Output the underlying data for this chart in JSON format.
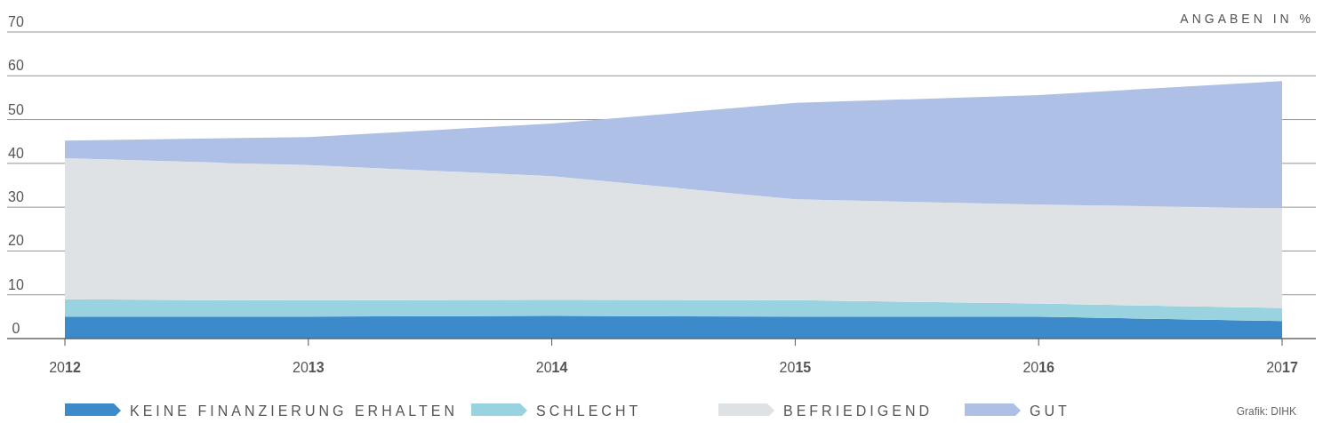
{
  "chart_data": {
    "type": "area",
    "stacked": true,
    "ylabel": "ANGABEN IN %",
    "categories": [
      "2012",
      "2013",
      "2014",
      "2015",
      "2016",
      "2017"
    ],
    "series": [
      {
        "name": "KEINE FINANZIERUNG ERHALTEN",
        "color": "#3d8acb",
        "values": [
          5,
          5,
          5.2,
          5,
          5,
          4
        ]
      },
      {
        "name": "SCHLECHT",
        "color": "#98d3df",
        "values": [
          4,
          3.7,
          3.7,
          3.8,
          3,
          3
        ]
      },
      {
        "name": "BEFRIEDIGEND",
        "color": "#dfe2e5",
        "values": [
          32.2,
          30.9,
          28.2,
          23,
          22.6,
          22.8
        ]
      },
      {
        "name": "GUT",
        "color": "#aec0e6",
        "values": [
          4,
          6.4,
          12,
          22,
          25,
          29
        ]
      }
    ],
    "ylim": [
      0,
      70
    ],
    "yticks": [
      0,
      10,
      20,
      30,
      40,
      50,
      60,
      70
    ],
    "grid": "y",
    "legend": "bottom",
    "annotations": [
      "Grafik: DIHK"
    ]
  }
}
